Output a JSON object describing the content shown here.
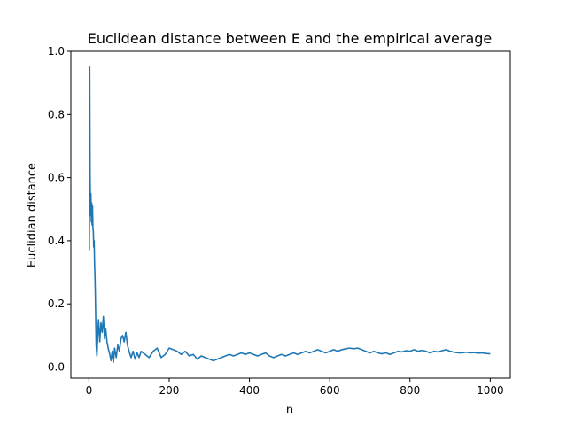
{
  "chart_data": {
    "type": "line",
    "title": "Euclidean distance between E and the empirical average",
    "xlabel": "n",
    "ylabel": "Euclidian distance",
    "xlim": [
      -45,
      1050
    ],
    "ylim": [
      -0.035,
      1.0
    ],
    "x_ticks": [
      0,
      200,
      400,
      600,
      800,
      1000
    ],
    "y_ticks": [
      0.0,
      0.2,
      0.4,
      0.6,
      0.8,
      1.0
    ],
    "x_tick_labels": [
      "0",
      "200",
      "400",
      "600",
      "800",
      "1000"
    ],
    "y_tick_labels": [
      "0.0",
      "0.2",
      "0.4",
      "0.6",
      "0.8",
      "1.0"
    ],
    "grid": false,
    "legend": "none",
    "series": [
      {
        "color": "#1f77b4",
        "points": [
          [
            1,
            0.37
          ],
          [
            2,
            0.95
          ],
          [
            3,
            0.6
          ],
          [
            4,
            0.48
          ],
          [
            5,
            0.55
          ],
          [
            6,
            0.46
          ],
          [
            7,
            0.52
          ],
          [
            8,
            0.45
          ],
          [
            9,
            0.51
          ],
          [
            10,
            0.44
          ],
          [
            11,
            0.43
          ],
          [
            12,
            0.38
          ],
          [
            13,
            0.4
          ],
          [
            14,
            0.33
          ],
          [
            15,
            0.29
          ],
          [
            16,
            0.23
          ],
          [
            17,
            0.15
          ],
          [
            18,
            0.07
          ],
          [
            19,
            0.05
          ],
          [
            20,
            0.035
          ],
          [
            22,
            0.1
          ],
          [
            24,
            0.15
          ],
          [
            27,
            0.08
          ],
          [
            30,
            0.14
          ],
          [
            33,
            0.11
          ],
          [
            36,
            0.16
          ],
          [
            39,
            0.09
          ],
          [
            42,
            0.12
          ],
          [
            45,
            0.08
          ],
          [
            48,
            0.06
          ],
          [
            52,
            0.04
          ],
          [
            55,
            0.02
          ],
          [
            58,
            0.05
          ],
          [
            61,
            0.015
          ],
          [
            64,
            0.06
          ],
          [
            68,
            0.03
          ],
          [
            72,
            0.07
          ],
          [
            76,
            0.05
          ],
          [
            80,
            0.09
          ],
          [
            84,
            0.1
          ],
          [
            88,
            0.08
          ],
          [
            92,
            0.11
          ],
          [
            96,
            0.07
          ],
          [
            100,
            0.05
          ],
          [
            105,
            0.03
          ],
          [
            110,
            0.05
          ],
          [
            115,
            0.025
          ],
          [
            120,
            0.045
          ],
          [
            125,
            0.03
          ],
          [
            130,
            0.05
          ],
          [
            140,
            0.04
          ],
          [
            150,
            0.03
          ],
          [
            160,
            0.05
          ],
          [
            170,
            0.06
          ],
          [
            180,
            0.03
          ],
          [
            190,
            0.04
          ],
          [
            200,
            0.06
          ],
          [
            210,
            0.055
          ],
          [
            220,
            0.05
          ],
          [
            230,
            0.04
          ],
          [
            240,
            0.05
          ],
          [
            250,
            0.035
          ],
          [
            260,
            0.04
          ],
          [
            270,
            0.025
          ],
          [
            280,
            0.035
          ],
          [
            290,
            0.03
          ],
          [
            300,
            0.025
          ],
          [
            310,
            0.02
          ],
          [
            320,
            0.025
          ],
          [
            330,
            0.03
          ],
          [
            340,
            0.035
          ],
          [
            350,
            0.04
          ],
          [
            360,
            0.035
          ],
          [
            370,
            0.04
          ],
          [
            380,
            0.045
          ],
          [
            390,
            0.04
          ],
          [
            400,
            0.045
          ],
          [
            410,
            0.04
          ],
          [
            420,
            0.035
          ],
          [
            430,
            0.04
          ],
          [
            440,
            0.045
          ],
          [
            450,
            0.035
          ],
          [
            460,
            0.03
          ],
          [
            470,
            0.035
          ],
          [
            480,
            0.04
          ],
          [
            490,
            0.035
          ],
          [
            500,
            0.04
          ],
          [
            510,
            0.045
          ],
          [
            520,
            0.04
          ],
          [
            530,
            0.045
          ],
          [
            540,
            0.05
          ],
          [
            550,
            0.045
          ],
          [
            560,
            0.05
          ],
          [
            570,
            0.055
          ],
          [
            580,
            0.05
          ],
          [
            590,
            0.045
          ],
          [
            600,
            0.05
          ],
          [
            610,
            0.055
          ],
          [
            620,
            0.05
          ],
          [
            630,
            0.055
          ],
          [
            640,
            0.058
          ],
          [
            650,
            0.06
          ],
          [
            660,
            0.058
          ],
          [
            670,
            0.06
          ],
          [
            680,
            0.055
          ],
          [
            690,
            0.05
          ],
          [
            700,
            0.045
          ],
          [
            710,
            0.05
          ],
          [
            720,
            0.045
          ],
          [
            730,
            0.042
          ],
          [
            740,
            0.045
          ],
          [
            750,
            0.04
          ],
          [
            760,
            0.045
          ],
          [
            770,
            0.05
          ],
          [
            780,
            0.048
          ],
          [
            790,
            0.052
          ],
          [
            800,
            0.05
          ],
          [
            810,
            0.055
          ],
          [
            820,
            0.05
          ],
          [
            830,
            0.053
          ],
          [
            840,
            0.05
          ],
          [
            850,
            0.045
          ],
          [
            860,
            0.05
          ],
          [
            870,
            0.048
          ],
          [
            880,
            0.052
          ],
          [
            890,
            0.055
          ],
          [
            900,
            0.05
          ],
          [
            910,
            0.047
          ],
          [
            920,
            0.045
          ],
          [
            930,
            0.045
          ],
          [
            940,
            0.047
          ],
          [
            950,
            0.045
          ],
          [
            960,
            0.046
          ],
          [
            970,
            0.044
          ],
          [
            980,
            0.045
          ],
          [
            990,
            0.043
          ],
          [
            1000,
            0.042
          ]
        ]
      }
    ]
  }
}
